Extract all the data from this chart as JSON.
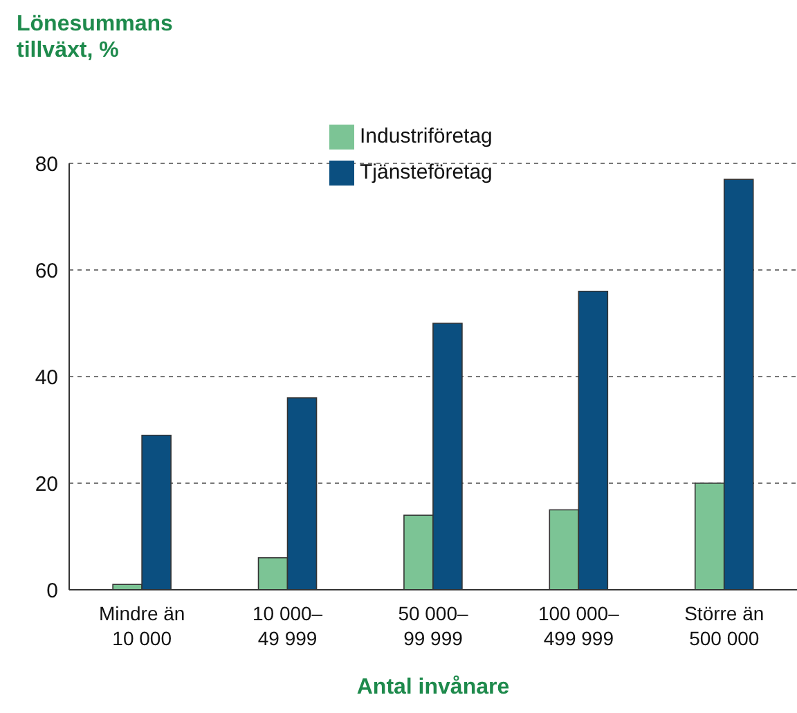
{
  "chart_data": {
    "type": "bar",
    "ylabel": "Lönesummans\ntillväxt, %",
    "xlabel": "Antal invånare",
    "categories": [
      "Mindre än\n10 000",
      "10 000–\n49 999",
      "50 000–\n99 999",
      "100 000–\n499 999",
      "Större än\n500 000"
    ],
    "series": [
      {
        "name": "Industriföretag",
        "color": "#7cc495",
        "values": [
          1,
          6,
          14,
          15,
          20
        ]
      },
      {
        "name": "Tjänsteföretag",
        "color": "#0b4f80",
        "values": [
          29,
          36,
          50,
          56,
          77
        ]
      }
    ],
    "ylim": [
      0,
      80
    ],
    "yticks": [
      0,
      20,
      40,
      60,
      80
    ],
    "grid": "y",
    "legend": "top"
  }
}
